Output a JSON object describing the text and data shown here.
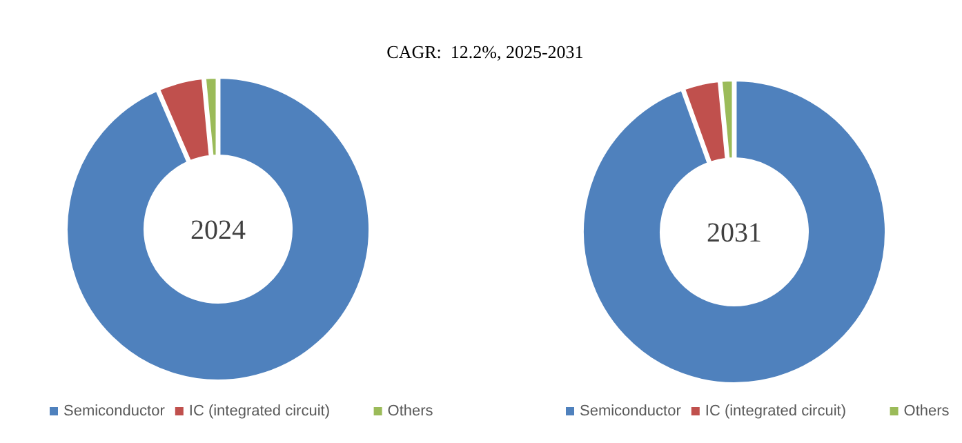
{
  "chart_data": [
    {
      "type": "donut",
      "title": "2024",
      "annotations": [
        "CAGR:  12.2%, 2025-2031"
      ],
      "categories": [
        "Semiconductor",
        "IC (integrated circuit)",
        "Others"
      ],
      "values": [
        93.5,
        5,
        1.5
      ],
      "colors": [
        "#4f81bd",
        "#c0504d",
        "#9bbb59"
      ],
      "legend": "bottom"
    },
    {
      "type": "donut",
      "title": "2031",
      "categories": [
        "Semiconductor",
        "IC (integrated circuit)",
        "Others"
      ],
      "values": [
        94.5,
        4,
        1.5
      ],
      "colors": [
        "#4f81bd",
        "#c0504d",
        "#9bbb59"
      ],
      "legend": "bottom"
    }
  ]
}
